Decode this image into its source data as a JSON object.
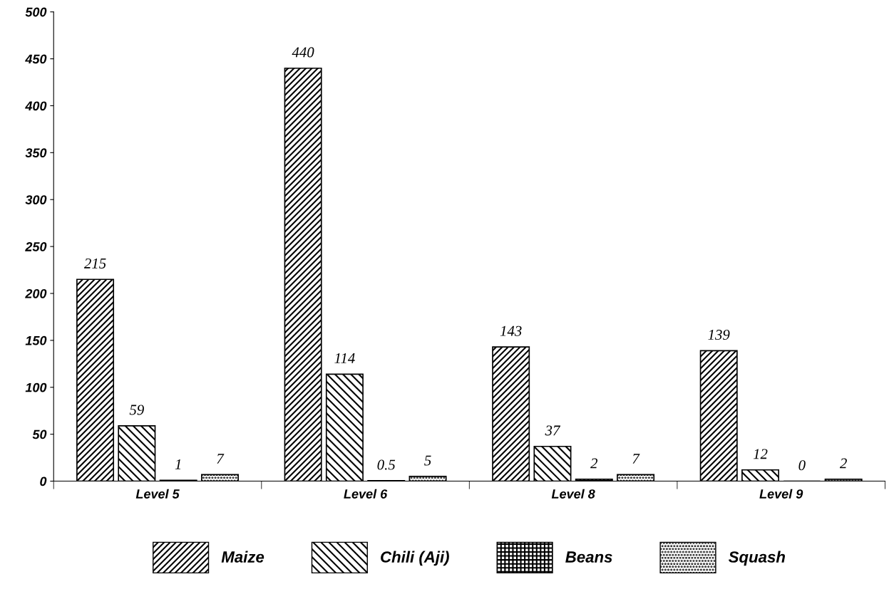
{
  "chart_data": {
    "type": "bar",
    "categories": [
      "Level 5",
      "Level 6",
      "Level 8",
      "Level 9"
    ],
    "series": [
      {
        "name": "Maize",
        "values": [
          215,
          440,
          143,
          139
        ]
      },
      {
        "name": "Chili (Aji)",
        "values": [
          59,
          114,
          37,
          12
        ]
      },
      {
        "name": "Beans",
        "values": [
          1,
          0.5,
          2,
          0
        ]
      },
      {
        "name": "Squash",
        "values": [
          7,
          5,
          7,
          2
        ]
      }
    ],
    "ylim": [
      0,
      500
    ],
    "yticks": [
      0,
      50,
      100,
      150,
      200,
      250,
      300,
      350,
      400,
      450,
      500
    ],
    "data_labels": true,
    "legend": "bottom",
    "grid": false
  }
}
